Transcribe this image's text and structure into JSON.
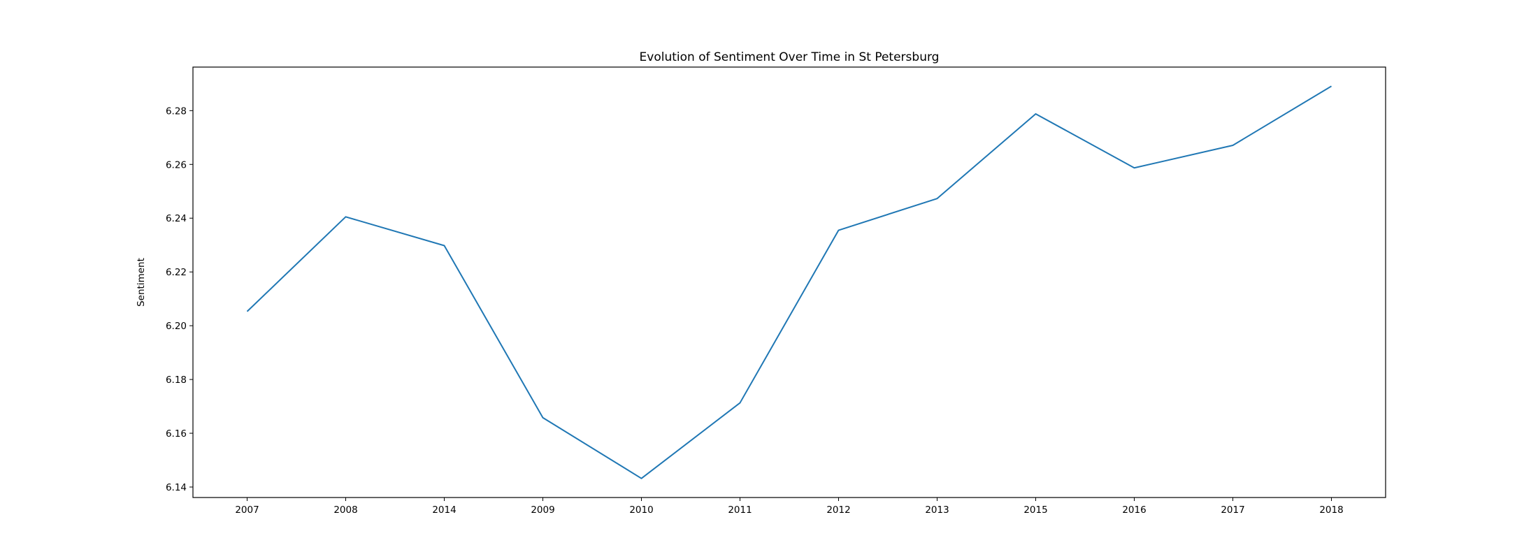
{
  "chart_data": {
    "type": "line",
    "title": "Evolution of Sentiment Over Time in St Petersburg",
    "xlabel": "",
    "ylabel": "Sentiment",
    "categories": [
      "2007",
      "2008",
      "2014",
      "2009",
      "2010",
      "2011",
      "2012",
      "2013",
      "2015",
      "2016",
      "2017",
      "2018"
    ],
    "series": [
      {
        "values": [
          6.2053,
          6.2405,
          6.2298,
          6.1658,
          6.1432,
          6.1713,
          6.2355,
          6.2473,
          6.2788,
          6.2587,
          6.2671,
          6.2891
        ]
      }
    ],
    "yticks": [
      6.14,
      6.16,
      6.18,
      6.2,
      6.22,
      6.24,
      6.26,
      6.28
    ],
    "ylim": [
      6.1361,
      6.2962
    ],
    "grid": false,
    "line_color": "#1f77b4"
  }
}
